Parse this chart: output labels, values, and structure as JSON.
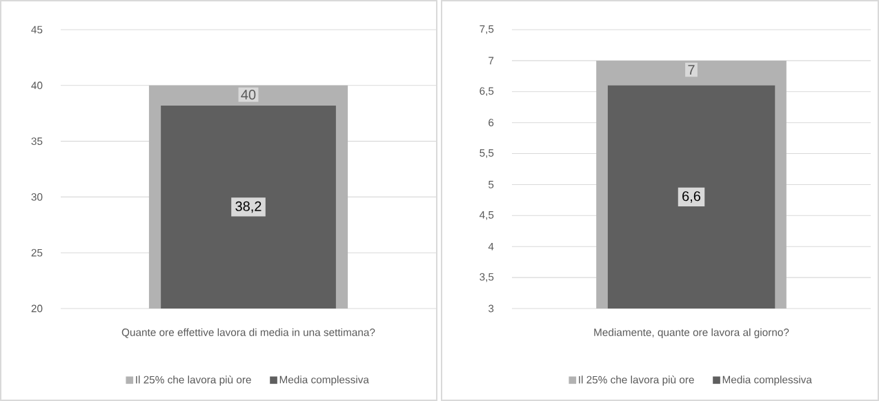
{
  "chart_data": [
    {
      "type": "bar",
      "categories": [
        "Quante ore effettive lavora di media in una settimana?"
      ],
      "series": [
        {
          "name": "Il 25% che lavora più ore",
          "color": "#b2b2b2",
          "values": [
            40
          ],
          "value_labels": [
            "40"
          ]
        },
        {
          "name": "Media complessiva",
          "color": "#5f5f5f",
          "values": [
            38.2
          ],
          "value_labels": [
            "38,2"
          ]
        }
      ],
      "ylim": [
        20,
        45
      ],
      "yticks": [
        20,
        25,
        30,
        35,
        40,
        45
      ],
      "grid": "y",
      "legend": "bottom"
    },
    {
      "type": "bar",
      "categories": [
        "Mediamente, quante ore lavora al giorno?"
      ],
      "series": [
        {
          "name": "Il 25% che lavora più ore",
          "color": "#b2b2b2",
          "values": [
            7
          ],
          "value_labels": [
            "7"
          ]
        },
        {
          "name": "Media complessiva",
          "color": "#5f5f5f",
          "values": [
            6.6
          ],
          "value_labels": [
            "6,6"
          ]
        }
      ],
      "ylim": [
        3,
        7.5
      ],
      "yticks": [
        3,
        {
          "value": 3.5,
          "label": "3,5"
        },
        4,
        {
          "value": 4.5,
          "label": "4,5"
        },
        5,
        {
          "value": 5.5,
          "label": "5,5"
        },
        6,
        {
          "value": 6.5,
          "label": "6,5"
        },
        7,
        {
          "value": 7.5,
          "label": "7,5"
        }
      ],
      "grid": "y",
      "legend": "bottom"
    }
  ]
}
